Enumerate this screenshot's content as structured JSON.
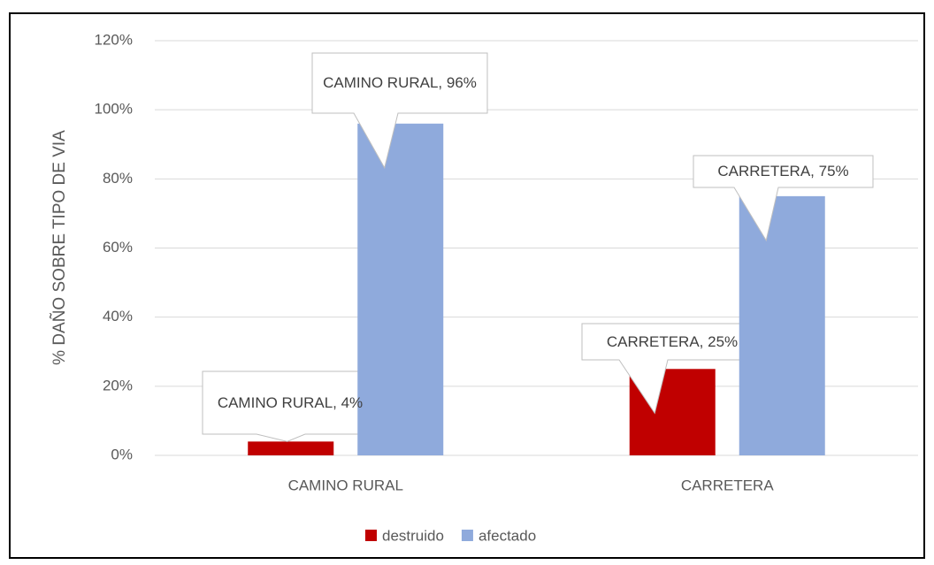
{
  "chart_data": {
    "type": "bar",
    "categories": [
      "CAMINO RURAL",
      "CARRETERA"
    ],
    "series": [
      {
        "name": "destruido",
        "color": "#c00000",
        "values": [
          4,
          25
        ],
        "value_labels": [
          "CAMINO RURAL, 4%",
          "CARRETERA, 25%"
        ]
      },
      {
        "name": "afectado",
        "color": "#8faadc",
        "values": [
          96,
          75
        ],
        "value_labels": [
          "CAMINO RURAL, 96%",
          "CARRETERA, 75%"
        ]
      }
    ],
    "y_label": "% DAÑO SOBRE TIPO DE VIA",
    "ylim": [
      0,
      120
    ],
    "yticks": [
      {
        "value": 0,
        "label": "0%"
      },
      {
        "value": 20,
        "label": "20%"
      },
      {
        "value": 40,
        "label": "40%"
      },
      {
        "value": 60,
        "label": "60%"
      },
      {
        "value": 80,
        "label": "80%"
      },
      {
        "value": 100,
        "label": "100%"
      },
      {
        "value": 120,
        "label": "120%"
      }
    ],
    "grid": true,
    "legend": "bottom"
  }
}
